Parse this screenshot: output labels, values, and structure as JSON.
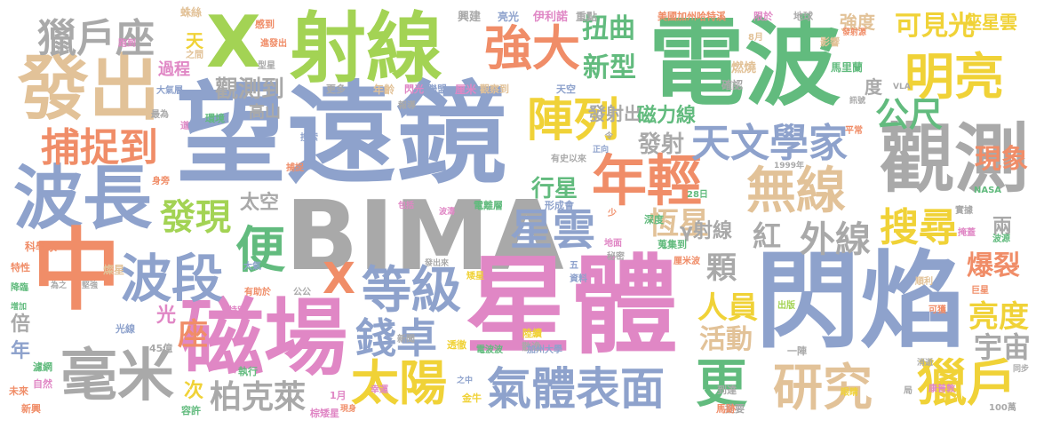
{
  "colors": {
    "background": "#ffffff",
    "blue": "#8ea2cc",
    "green": "#62bb7e",
    "orange": "#f08d68",
    "pink": "#e087c5",
    "lime": "#a3d354",
    "yellow": "#f0d237",
    "tan": "#e2c298",
    "gray": "#a9a9a9"
  },
  "words": [
    {
      "text": "望遠鏡",
      "color": "blue"
    },
    {
      "text": "BIMA",
      "color": "gray"
    },
    {
      "text": "星體",
      "color": "pink"
    },
    {
      "text": "電波",
      "color": "green"
    },
    {
      "text": "閃焰",
      "color": "blue"
    },
    {
      "text": "磁場",
      "color": "pink"
    },
    {
      "text": "射線",
      "color": "lime"
    },
    {
      "text": "觀測",
      "color": "gray"
    },
    {
      "text": "波長",
      "color": "blue"
    },
    {
      "text": "發出",
      "color": "tan"
    },
    {
      "text": "中",
      "color": "orange"
    },
    {
      "text": "X",
      "color": "lime"
    },
    {
      "text": "年輕",
      "color": "orange"
    },
    {
      "text": "毫米",
      "color": "gray"
    },
    {
      "text": "太陽",
      "color": "yellow"
    },
    {
      "text": "氣體表面",
      "color": "blue"
    },
    {
      "text": "研究",
      "color": "tan"
    },
    {
      "text": "無線",
      "color": "tan"
    },
    {
      "text": "天文學家",
      "color": "blue"
    },
    {
      "text": "明亮",
      "color": "yellow"
    },
    {
      "text": "強大",
      "color": "orange"
    },
    {
      "text": "陣列",
      "color": "yellow"
    },
    {
      "text": "星雲",
      "color": "blue"
    },
    {
      "text": "波段",
      "color": "blue"
    },
    {
      "text": "等級",
      "color": "blue"
    },
    {
      "text": "捕捉到",
      "color": "orange"
    },
    {
      "text": "獵戶座",
      "color": "gray"
    },
    {
      "text": "便",
      "color": "green"
    },
    {
      "text": "搜尋",
      "color": "yellow"
    },
    {
      "text": "發現",
      "color": "lime"
    },
    {
      "text": "獵戶",
      "color": "yellow"
    },
    {
      "text": "外線",
      "color": "gray"
    },
    {
      "text": "錢卓",
      "color": "blue"
    },
    {
      "text": "更",
      "color": "green"
    },
    {
      "text": "公尺",
      "color": "green"
    },
    {
      "text": "柏克萊",
      "color": "gray"
    },
    {
      "text": "恆星",
      "color": "tan"
    },
    {
      "text": "扭曲",
      "color": "green"
    },
    {
      "text": "新型",
      "color": "green"
    },
    {
      "text": "可見光",
      "color": "yellow"
    },
    {
      "text": "人員",
      "color": "yellow"
    },
    {
      "text": "活動",
      "color": "tan"
    },
    {
      "text": "現象",
      "color": "orange"
    },
    {
      "text": "亮度",
      "color": "yellow"
    },
    {
      "text": "爆裂",
      "color": "orange"
    },
    {
      "text": "宇宙",
      "color": "gray"
    },
    {
      "text": "X",
      "color": "orange"
    },
    {
      "text": "座",
      "color": "orange"
    },
    {
      "text": "行星",
      "color": "green"
    },
    {
      "text": "紅",
      "color": "gray"
    },
    {
      "text": "顆",
      "color": "gray"
    },
    {
      "text": "強度",
      "color": "tan"
    },
    {
      "text": "座星雲",
      "color": "yellow"
    },
    {
      "text": "發射",
      "color": "gray"
    },
    {
      "text": "發射出",
      "color": "gray"
    },
    {
      "text": "太空",
      "color": "gray"
    },
    {
      "text": "觀測到",
      "color": "gray"
    },
    {
      "text": "高山",
      "color": "gray"
    },
    {
      "text": "磁力線",
      "color": "green"
    },
    {
      "text": "γ射線",
      "color": "gray"
    },
    {
      "text": "光",
      "color": "pink"
    },
    {
      "text": "次",
      "color": "yellow"
    },
    {
      "text": "年",
      "color": "blue"
    },
    {
      "text": "倍",
      "color": "gray"
    },
    {
      "text": "過程",
      "color": "pink"
    },
    {
      "text": "天",
      "color": "yellow"
    },
    {
      "text": "馬里蘭",
      "color": "green"
    },
    {
      "text": "度",
      "color": "gray"
    },
    {
      "text": "兩",
      "color": "gray"
    },
    {
      "text": "美國加州哈特溪",
      "color": "orange"
    },
    {
      "text": "限於",
      "color": "pink"
    },
    {
      "text": "蛛絲",
      "color": "tan"
    },
    {
      "text": "感到",
      "color": "orange"
    },
    {
      "text": "伊利諾",
      "color": "pink"
    },
    {
      "text": "興建",
      "color": "gray"
    },
    {
      "text": "亮光",
      "color": "blue"
    },
    {
      "text": "重點",
      "color": "gray"
    },
    {
      "text": "地球",
      "color": "gray"
    },
    {
      "text": "燃燒",
      "color": "tan"
    },
    {
      "text": "確認",
      "color": "gray"
    },
    {
      "text": "影響",
      "color": "tan"
    },
    {
      "text": "更多",
      "color": "gray"
    },
    {
      "text": "年齡",
      "color": "tan"
    },
    {
      "text": "閃光",
      "color": "pink"
    },
    {
      "text": "聯盟",
      "color": "blue"
    },
    {
      "text": "厘米",
      "color": "pink"
    },
    {
      "text": "觀察到",
      "color": "tan"
    },
    {
      "text": "天空",
      "color": "blue"
    },
    {
      "text": "環境",
      "color": "green"
    },
    {
      "text": "大氣層",
      "color": "blue"
    },
    {
      "text": "跑到",
      "color": "pink"
    },
    {
      "text": "型星",
      "color": "gray"
    },
    {
      "text": "新聞",
      "color": "gray"
    },
    {
      "text": "科學家",
      "color": "orange"
    },
    {
      "text": "燦星",
      "color": "tan"
    },
    {
      "text": "特性",
      "color": "orange"
    },
    {
      "text": "降臨",
      "color": "green"
    },
    {
      "text": "濾網",
      "color": "green"
    },
    {
      "text": "自然",
      "color": "pink"
    },
    {
      "text": "未來",
      "color": "orange"
    },
    {
      "text": "新興",
      "color": "orange"
    },
    {
      "text": "執行",
      "color": "green"
    },
    {
      "text": "容許",
      "color": "green"
    },
    {
      "text": "1月",
      "color": "pink"
    },
    {
      "text": "棕矮星",
      "color": "pink"
    },
    {
      "text": "金牛",
      "color": "yellow"
    },
    {
      "text": "提要",
      "color": "gray"
    },
    {
      "text": "100萬",
      "color": "gray"
    },
    {
      "text": "平常",
      "color": "orange"
    },
    {
      "text": "波源",
      "color": "green"
    },
    {
      "text": "順利",
      "color": "tan"
    },
    {
      "text": "巨星",
      "color": "orange"
    },
    {
      "text": "可獲",
      "color": "orange"
    },
    {
      "text": "出版",
      "color": "lime"
    },
    {
      "text": "實據",
      "color": "gray"
    },
    {
      "text": "掩蓋",
      "color": "pink"
    },
    {
      "text": "NASA",
      "color": "green"
    },
    {
      "text": "康普敦",
      "color": "pink"
    },
    {
      "text": "眼睛",
      "color": "yellow"
    },
    {
      "text": "局",
      "color": "gray"
    },
    {
      "text": "同步",
      "color": "gray"
    },
    {
      "text": "消逝",
      "color": "gray"
    },
    {
      "text": "到達",
      "color": "gray"
    },
    {
      "text": "馬跡",
      "color": "orange"
    },
    {
      "text": "一陣",
      "color": "gray"
    },
    {
      "text": "陸續",
      "color": "yellow"
    },
    {
      "text": "散逸",
      "color": "gray"
    },
    {
      "text": "加州大學",
      "color": "blue"
    },
    {
      "text": "電波波",
      "color": "green"
    },
    {
      "text": "透徹",
      "color": "yellow"
    },
    {
      "text": "電離層",
      "color": "green"
    },
    {
      "text": "形成會",
      "color": "blue"
    },
    {
      "text": "地面",
      "color": "pink"
    },
    {
      "text": "秘密",
      "color": "gray"
    },
    {
      "text": "深度",
      "color": "green"
    },
    {
      "text": "蒐集到",
      "color": "green"
    },
    {
      "text": "厘米波",
      "color": "orange"
    },
    {
      "text": "資料",
      "color": "blue"
    },
    {
      "text": "有史以來",
      "color": "gray"
    },
    {
      "text": "1999年",
      "color": "gray"
    },
    {
      "text": "正向",
      "color": "blue"
    },
    {
      "text": "令",
      "color": "gray"
    },
    {
      "text": "有助於",
      "color": "orange"
    },
    {
      "text": "公公",
      "color": "gray"
    },
    {
      "text": "大氣",
      "color": "blue"
    },
    {
      "text": "發出來",
      "color": "gray"
    },
    {
      "text": "矮星",
      "color": "yellow"
    },
    {
      "text": "45億",
      "color": "gray"
    },
    {
      "text": "特別",
      "color": "pink"
    },
    {
      "text": "身旁",
      "color": "orange"
    },
    {
      "text": "包括",
      "color": "pink"
    },
    {
      "text": "波濤",
      "color": "pink"
    },
    {
      "text": "搜索",
      "color": "blue"
    },
    {
      "text": "捕捉",
      "color": "orange"
    },
    {
      "text": "報導",
      "color": "gray"
    },
    {
      "text": "最為",
      "color": "gray"
    },
    {
      "text": "道",
      "color": "pink"
    },
    {
      "text": "光線",
      "color": "blue"
    },
    {
      "text": "幸運",
      "color": "pink"
    },
    {
      "text": "現身",
      "color": "orange"
    },
    {
      "text": "之中",
      "color": "blue"
    },
    {
      "text": "28日",
      "color": "green"
    },
    {
      "text": "8月",
      "color": "tan"
    },
    {
      "text": "進發出",
      "color": "orange"
    },
    {
      "text": "之間",
      "color": "tan"
    },
    {
      "text": "發射源",
      "color": "orange"
    },
    {
      "text": "VLA",
      "color": "gray"
    },
    {
      "text": "訊號",
      "color": "gray"
    },
    {
      "text": "為之",
      "color": "gray"
    },
    {
      "text": "堅強",
      "color": "gray"
    },
    {
      "text": "增加",
      "color": "green"
    },
    {
      "text": "五",
      "color": "blue"
    },
    {
      "text": "少",
      "color": "orange"
    }
  ]
}
